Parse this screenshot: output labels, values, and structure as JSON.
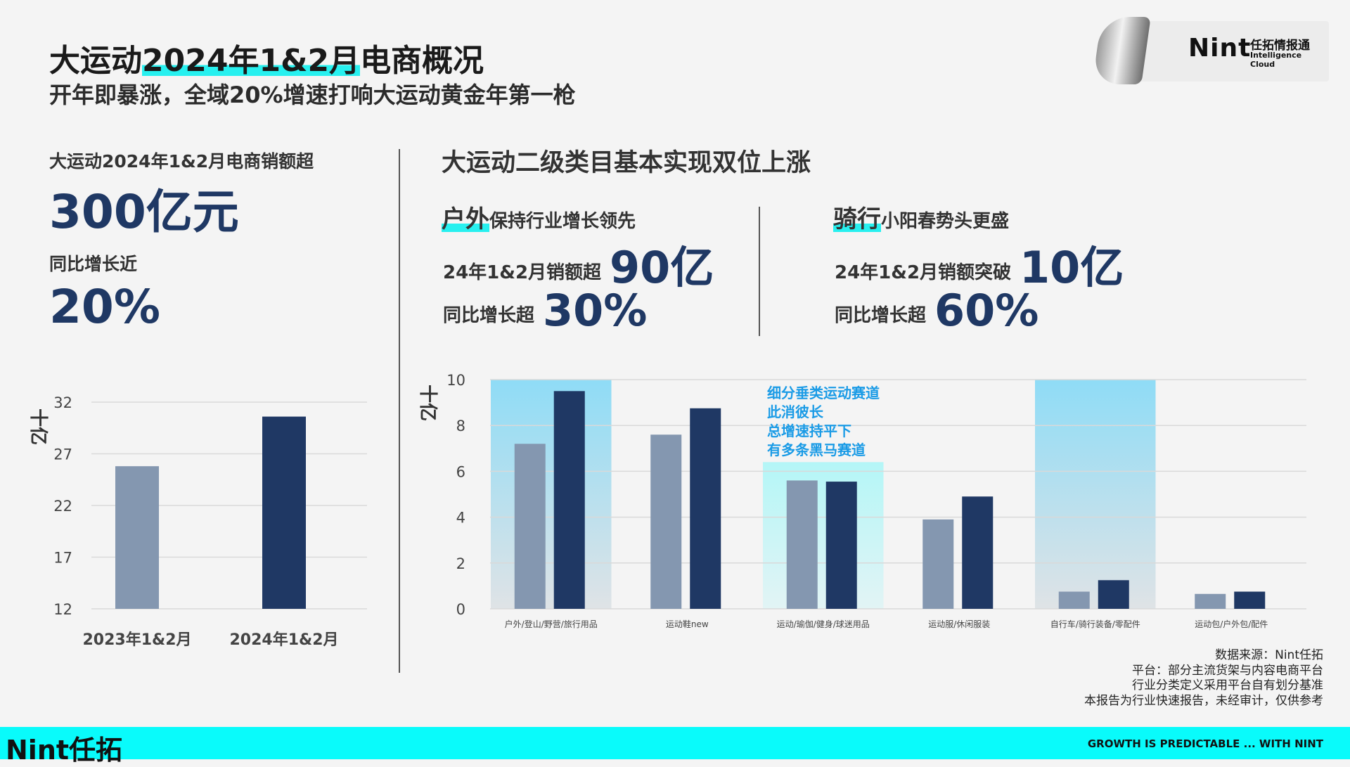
{
  "header": {
    "title_pre": "大运动",
    "title_highlight": "2024年1&2月",
    "title_post": "电商概况",
    "subtitle": "开年即暴涨，全域20%增速打响大运动黄金年第一枪"
  },
  "brand": {
    "name": "Nint",
    "name_cn": "任拓情报通",
    "name_en": "Intelligence Cloud"
  },
  "left_panel": {
    "sales_label": "大运动2024年1&2月电商销额超",
    "sales_value": "300亿元",
    "growth_label": "同比增长近",
    "growth_value": "20%"
  },
  "right_panel": {
    "heading": "大运动二级类目基本实现双位上涨",
    "segments": [
      {
        "key": "户外",
        "desc": "保持行业增长领先",
        "sales_label": "24年1&2月销额超",
        "sales_value": "90亿",
        "growth_label": "同比增长超",
        "growth_value": "30%"
      },
      {
        "key": "骑行",
        "desc": "小阳春势头更盛",
        "sales_label": "24年1&2月销额突破",
        "sales_value": "10亿",
        "growth_label": "同比增长超",
        "growth_value": "60%"
      }
    ]
  },
  "colors": {
    "series_2023": "#8497b0",
    "series_2024": "#1f3864",
    "accent": "#09fbfb",
    "annotation_text": "#1a9be6"
  },
  "chart_data": [
    {
      "type": "bar",
      "ylabel": "十亿",
      "ylim": [
        12,
        32
      ],
      "yticks": [
        12,
        17,
        22,
        27,
        32
      ],
      "grid": true,
      "categories": [
        "2023年1&2月",
        "2024年1&2月"
      ],
      "values": [
        25.8,
        30.6
      ],
      "bar_colors": [
        "#8497b0",
        "#1f3864"
      ]
    },
    {
      "type": "bar",
      "ylabel": "十亿",
      "ylim": [
        0,
        10
      ],
      "yticks": [
        0,
        2,
        4,
        6,
        8,
        10
      ],
      "grid": true,
      "categories": [
        "户外/登山/野营/旅行用品",
        "运动鞋new",
        "运动/瑜伽/健身/球迷用品",
        "运动服/休闲服装",
        "自行车/骑行装备/零配件",
        "运动包/户外包/配件"
      ],
      "series": [
        {
          "values": [
            7.2,
            7.6,
            5.6,
            3.9,
            0.75,
            0.65
          ],
          "color": "#8497b0"
        },
        {
          "values": [
            9.5,
            8.75,
            5.55,
            4.9,
            1.25,
            0.75
          ],
          "color": "#1f3864"
        }
      ],
      "highlights": [
        {
          "category_index": 0,
          "style": "blue-fade"
        },
        {
          "category_index": 2,
          "style": "cyan-fade"
        },
        {
          "category_index": 4,
          "style": "blue-fade"
        }
      ],
      "annotation": [
        "细分垂类运动赛道",
        "此消彼长",
        "总增速持平下",
        "有多条黑马赛道"
      ]
    }
  ],
  "source_notes": [
    "数据来源：Nint任拓",
    "平台：部分主流货架与内容电商平台",
    "行业分类定义采用平台自有划分基准",
    "本报告为行业快速报告，未经审计，仅供参考"
  ],
  "footer": {
    "logo": "Nint任拓",
    "slogan": "GROWTH IS PREDICTABLE ... WITH NINT"
  }
}
